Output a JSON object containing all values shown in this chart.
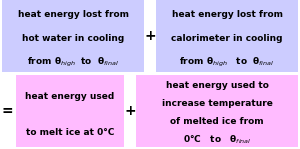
{
  "fig_width": 3.0,
  "fig_height": 1.49,
  "dpi": 100,
  "bg_color": "#ffffff",
  "box1_color": "#ccccff",
  "box2_color": "#ccccff",
  "box3_color": "#ffbbff",
  "box4_color": "#ffbbff",
  "box1_text_lines": [
    "heat energy lost from",
    "hot water in cooling",
    "from θ$_{high}$  to  θ$_{final}$"
  ],
  "box2_text_lines": [
    "heat energy lost from",
    "calorimeter in cooling",
    "from θ$_{high}$   to  θ$_{final}$"
  ],
  "box3_text_lines": [
    "heat energy used",
    "to melt ice at 0°C"
  ],
  "box4_text_lines": [
    "heat energy used to",
    "increase temperature",
    "of melted ice from",
    "0°C   to   θ$_{final}$"
  ],
  "plus_symbol": "+",
  "equals_symbol": "=",
  "font_size": 6.5,
  "symbol_font_size": 10
}
